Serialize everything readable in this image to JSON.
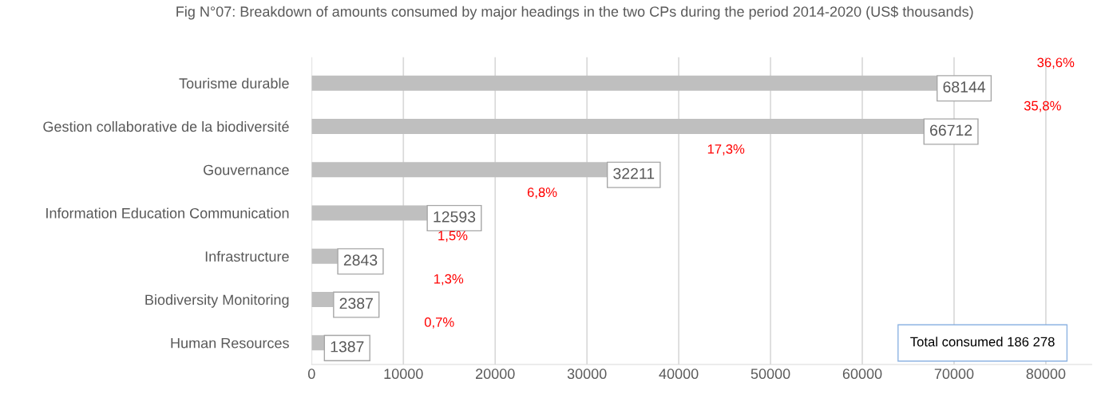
{
  "chart_data": {
    "type": "bar",
    "orientation": "horizontal",
    "title": "Fig N°07: Breakdown of amounts consumed by major headings in the two CPs during the period 2014-2020 (US$ thousands)",
    "categories": [
      "Tourisme durable",
      "Gestion collaborative de la biodiversité",
      "Gouvernance",
      "Information Education Communication",
      "Infrastructure",
      "Biodiversity Monitoring",
      "Human Resources"
    ],
    "values": [
      68144,
      66712,
      32211,
      12593,
      2843,
      2387,
      1387
    ],
    "color": "#bfbfbf",
    "data_labels": true,
    "xlim": [
      0,
      85000
    ],
    "xticks": [
      0,
      10000,
      20000,
      30000,
      40000,
      50000,
      60000,
      70000,
      80000
    ],
    "grid": "x",
    "annotations": [
      "36,6%",
      "35,8%",
      "17,3%",
      "6,8%",
      "1,5%",
      "1,3%",
      "0,7%",
      "Total consumed 186 278"
    ]
  }
}
